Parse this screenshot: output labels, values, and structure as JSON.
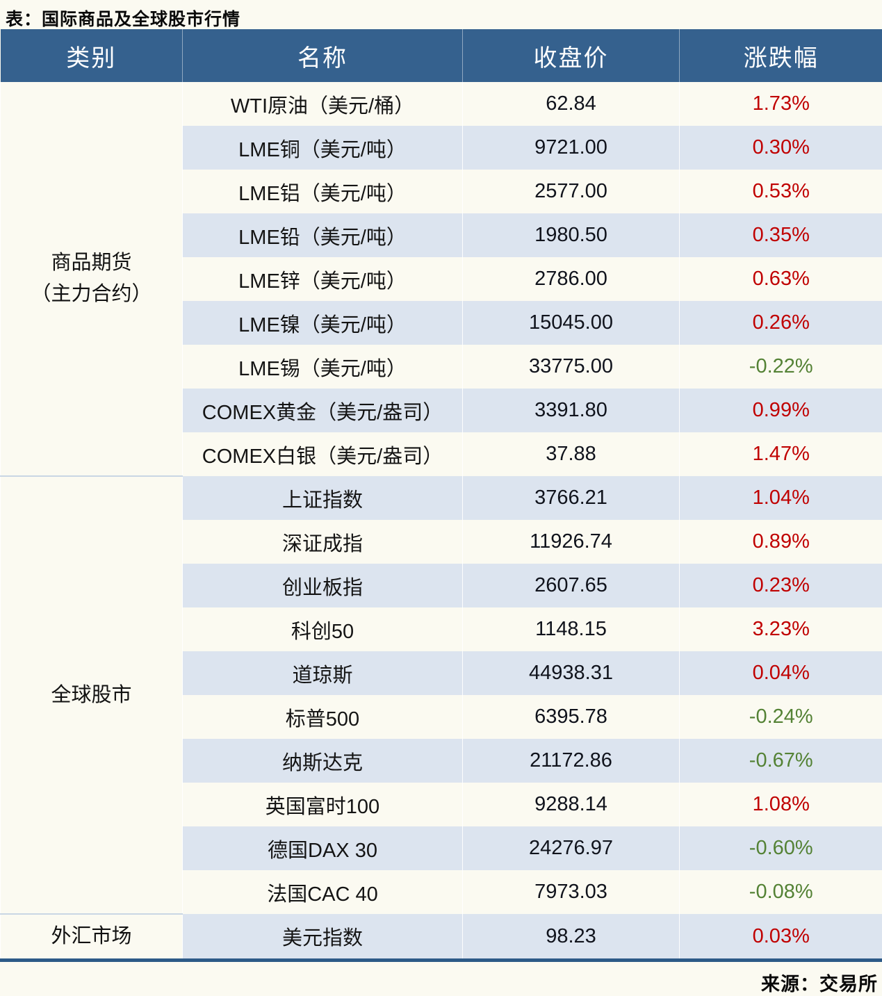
{
  "title": "表：国际商品及全球股市行情",
  "source": "来源：交易所",
  "header": {
    "category": "类别",
    "name": "名称",
    "close": "收盘价",
    "change": "涨跌幅"
  },
  "colors": {
    "header_bg": "#35618e",
    "band_blue": "#dce4ef",
    "band_white": "#fbfaf1",
    "up_red": "#c00000",
    "down_green": "#548235",
    "bottom_rule": "#2d5a87",
    "section_divider": "#c9d6e4"
  },
  "sections": [
    {
      "category": "商品期货（主力合约）",
      "category_lines": [
        "商品期货",
        "（主力合约）"
      ],
      "rows": [
        {
          "name": "WTI原油（美元/桶）",
          "close": "62.84",
          "change": "1.73%"
        },
        {
          "name": "LME铜（美元/吨）",
          "close": "9721.00",
          "change": "0.30%"
        },
        {
          "name": "LME铝（美元/吨）",
          "close": "2577.00",
          "change": "0.53%"
        },
        {
          "name": "LME铅（美元/吨）",
          "close": "1980.50",
          "change": "0.35%"
        },
        {
          "name": "LME锌（美元/吨）",
          "close": "2786.00",
          "change": "0.63%"
        },
        {
          "name": "LME镍（美元/吨）",
          "close": "15045.00",
          "change": "0.26%"
        },
        {
          "name": "LME锡（美元/吨）",
          "close": "33775.00",
          "change": "-0.22%"
        },
        {
          "name": "COMEX黄金（美元/盎司）",
          "close": "3391.80",
          "change": "0.99%"
        },
        {
          "name": "COMEX白银（美元/盎司）",
          "close": "37.88",
          "change": "1.47%"
        }
      ]
    },
    {
      "category": "全球股市",
      "category_lines": [
        "全球股市"
      ],
      "rows": [
        {
          "name": "上证指数",
          "close": "3766.21",
          "change": "1.04%"
        },
        {
          "name": "深证成指",
          "close": "11926.74",
          "change": "0.89%"
        },
        {
          "name": "创业板指",
          "close": "2607.65",
          "change": "0.23%"
        },
        {
          "name": "科创50",
          "close": "1148.15",
          "change": "3.23%"
        },
        {
          "name": "道琼斯",
          "close": "44938.31",
          "change": "0.04%"
        },
        {
          "name": "标普500",
          "close": "6395.78",
          "change": "-0.24%"
        },
        {
          "name": "纳斯达克",
          "close": "21172.86",
          "change": "-0.67%"
        },
        {
          "name": "英国富时100",
          "close": "9288.14",
          "change": "1.08%"
        },
        {
          "name": "德国DAX 30",
          "close": "24276.97",
          "change": "-0.60%"
        },
        {
          "name": "法国CAC 40",
          "close": "7973.03",
          "change": "-0.08%"
        }
      ]
    },
    {
      "category": "外汇市场",
      "category_lines": [
        "外汇市场"
      ],
      "rows": [
        {
          "name": "美元指数",
          "close": "98.23",
          "change": "0.03%"
        }
      ]
    }
  ],
  "chart_data": {
    "type": "table",
    "title": "表：国际商品及全球股市行情",
    "columns": [
      "类别",
      "名称",
      "收盘价",
      "涨跌幅"
    ],
    "rows": [
      [
        "商品期货（主力合约）",
        "WTI原油（美元/桶）",
        62.84,
        "1.73%"
      ],
      [
        "商品期货（主力合约）",
        "LME铜（美元/吨）",
        9721.0,
        "0.30%"
      ],
      [
        "商品期货（主力合约）",
        "LME铝（美元/吨）",
        2577.0,
        "0.53%"
      ],
      [
        "商品期货（主力合约）",
        "LME铅（美元/吨）",
        1980.5,
        "0.35%"
      ],
      [
        "商品期货（主力合约）",
        "LME锌（美元/吨）",
        2786.0,
        "0.63%"
      ],
      [
        "商品期货（主力合约）",
        "LME镍（美元/吨）",
        15045.0,
        "0.26%"
      ],
      [
        "商品期货（主力合约）",
        "LME锡（美元/吨）",
        33775.0,
        "-0.22%"
      ],
      [
        "商品期货（主力合约）",
        "COMEX黄金（美元/盎司）",
        3391.8,
        "0.99%"
      ],
      [
        "商品期货（主力合约）",
        "COMEX白银（美元/盎司）",
        37.88,
        "1.47%"
      ],
      [
        "全球股市",
        "上证指数",
        3766.21,
        "1.04%"
      ],
      [
        "全球股市",
        "深证成指",
        11926.74,
        "0.89%"
      ],
      [
        "全球股市",
        "创业板指",
        2607.65,
        "0.23%"
      ],
      [
        "全球股市",
        "科创50",
        1148.15,
        "3.23%"
      ],
      [
        "全球股市",
        "道琼斯",
        44938.31,
        "0.04%"
      ],
      [
        "全球股市",
        "标普500",
        6395.78,
        "-0.24%"
      ],
      [
        "全球股市",
        "纳斯达克",
        21172.86,
        "-0.67%"
      ],
      [
        "全球股市",
        "英国富时100",
        9288.14,
        "1.08%"
      ],
      [
        "全球股市",
        "德国DAX 30",
        24276.97,
        "-0.60%"
      ],
      [
        "全球股市",
        "法国CAC 40",
        7973.03,
        "-0.08%"
      ],
      [
        "外汇市场",
        "美元指数",
        98.23,
        "0.03%"
      ]
    ],
    "source": "来源：交易所",
    "layout": {
      "positive_color": "#c00000",
      "negative_color": "#548235",
      "banded_rows": true
    }
  }
}
